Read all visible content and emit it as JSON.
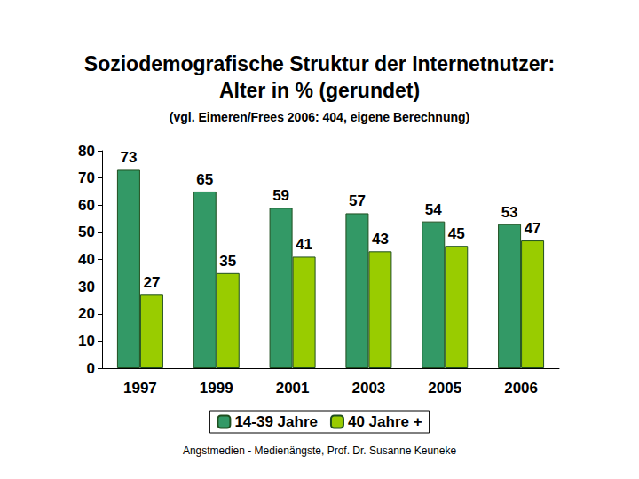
{
  "chart_data": {
    "type": "bar",
    "title": "Soziodemografische Struktur der Internetnutzer:\nAlter in % (gerundet)",
    "subtitle": "(vgl. Eimeren/Frees 2006: 404, eigene Berechnung)",
    "annotations": [
      "Angstmedien - Medienängste, Prof. Dr. Susanne Keuneke"
    ],
    "categories": [
      "1997",
      "1999",
      "2001",
      "2003",
      "2005",
      "2006"
    ],
    "series": [
      {
        "name": "14-39 Jahre",
        "color": "#339966",
        "values": [
          73,
          65,
          59,
          57,
          54,
          53
        ]
      },
      {
        "name": "40 Jahre +",
        "color": "#99cc00",
        "values": [
          27,
          35,
          41,
          43,
          45,
          47
        ]
      }
    ],
    "ylim": [
      0,
      80
    ],
    "yticks": [
      0,
      10,
      20,
      30,
      40,
      50,
      60,
      70,
      80
    ],
    "grid": false,
    "legend": "bottom",
    "data_labels": true
  }
}
